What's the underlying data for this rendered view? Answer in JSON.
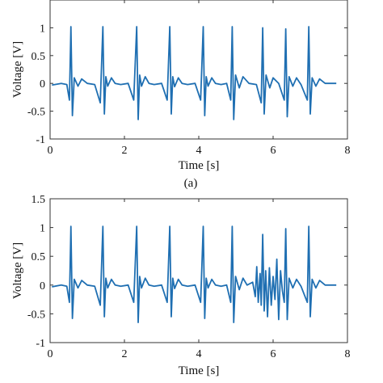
{
  "chart_data": [
    {
      "type": "line",
      "caption": "(a)",
      "xlabel": "Time [s]",
      "ylabel": "Voltage [V]",
      "xlim": [
        0,
        8
      ],
      "ylim": [
        -1,
        1.5
      ],
      "xticks": [
        0,
        2,
        4,
        6,
        8
      ],
      "xtick_labels": [
        "0",
        "2",
        "4",
        "6",
        "8"
      ],
      "yticks": [
        -1,
        -0.5,
        0,
        0.5,
        1
      ],
      "ytick_labels": [
        "-1",
        "-0.5",
        "0",
        "0.5",
        "1"
      ],
      "line_color": "#1f6fb2",
      "grid": false,
      "series": [
        {
          "values_description": "ECG-like signal with sharp R peaks",
          "x": [
            0.05,
            0.3,
            0.45,
            0.52,
            0.56,
            0.6,
            0.65,
            0.75,
            0.85,
            1.0,
            1.2,
            1.35,
            1.42,
            1.46,
            1.5,
            1.55,
            1.65,
            1.75,
            1.9,
            2.1,
            2.25,
            2.33,
            2.37,
            2.41,
            2.46,
            2.56,
            2.66,
            2.8,
            3.0,
            3.15,
            3.22,
            3.26,
            3.3,
            3.35,
            3.45,
            3.55,
            3.7,
            3.9,
            4.05,
            4.12,
            4.16,
            4.2,
            4.25,
            4.35,
            4.45,
            4.6,
            4.75,
            4.86,
            4.9,
            4.94,
            4.99,
            5.09,
            5.19,
            5.35,
            5.55,
            5.68,
            5.72,
            5.76,
            5.81,
            5.91,
            6.0,
            6.15,
            6.3,
            6.34,
            6.38,
            6.43,
            6.53,
            6.63,
            6.75,
            6.92,
            6.96,
            7.0,
            7.05,
            7.15,
            7.25,
            7.4,
            7.7
          ],
          "y": [
            -0.03,
            0.0,
            -0.02,
            -0.3,
            1.02,
            -0.58,
            0.1,
            -0.05,
            0.08,
            0.0,
            -0.02,
            -0.35,
            1.02,
            -0.55,
            0.12,
            -0.05,
            0.1,
            0.0,
            -0.02,
            0.0,
            -0.3,
            1.02,
            -0.65,
            0.15,
            -0.05,
            0.12,
            0.0,
            -0.02,
            0.0,
            -0.3,
            1.02,
            -0.55,
            0.12,
            -0.06,
            0.1,
            0.0,
            -0.02,
            0.0,
            -0.3,
            1.02,
            -0.58,
            0.12,
            -0.05,
            0.1,
            0.0,
            -0.02,
            0.0,
            -0.3,
            1.02,
            -0.65,
            0.15,
            -0.08,
            0.12,
            0.0,
            -0.02,
            -0.35,
            1.0,
            -0.55,
            0.15,
            -0.08,
            0.1,
            0.0,
            -0.3,
            0.98,
            -0.6,
            0.12,
            -0.05,
            0.1,
            -0.02,
            -0.3,
            1.02,
            -0.55,
            0.1,
            -0.05,
            0.08,
            0.0,
            0.0
          ]
        }
      ]
    },
    {
      "type": "line",
      "caption": "",
      "xlabel": "Time [s]",
      "ylabel": "Voltage [V]",
      "xlim": [
        0,
        8
      ],
      "ylim": [
        -1,
        1.5
      ],
      "xticks": [
        0,
        2,
        4,
        6,
        8
      ],
      "xtick_labels": [
        "0",
        "2",
        "4",
        "6",
        "8"
      ],
      "yticks": [
        -1,
        -0.5,
        0,
        0.5,
        1,
        1.5
      ],
      "ytick_labels": [
        "-1",
        "-0.5",
        "0",
        "0.5",
        "1",
        "1.5"
      ],
      "line_color": "#1f6fb2",
      "grid": false,
      "series": [
        {
          "values_description": "ECG-like signal with sharp R peaks and noisy segment near 5.5-6.5 s",
          "x": [
            0.05,
            0.3,
            0.45,
            0.52,
            0.56,
            0.6,
            0.65,
            0.75,
            0.85,
            1.0,
            1.2,
            1.35,
            1.42,
            1.46,
            1.5,
            1.55,
            1.65,
            1.75,
            1.9,
            2.1,
            2.25,
            2.33,
            2.37,
            2.41,
            2.46,
            2.56,
            2.66,
            2.8,
            3.0,
            3.15,
            3.22,
            3.26,
            3.3,
            3.35,
            3.45,
            3.55,
            3.7,
            3.9,
            4.05,
            4.12,
            4.16,
            4.2,
            4.25,
            4.35,
            4.45,
            4.6,
            4.75,
            4.86,
            4.9,
            4.94,
            4.99,
            5.09,
            5.19,
            5.3,
            5.45,
            5.52,
            5.56,
            5.6,
            5.65,
            5.68,
            5.72,
            5.76,
            5.8,
            5.85,
            5.9,
            5.95,
            6.0,
            6.05,
            6.1,
            6.15,
            6.2,
            6.25,
            6.3,
            6.34,
            6.38,
            6.43,
            6.53,
            6.63,
            6.75,
            6.92,
            6.96,
            7.0,
            7.05,
            7.15,
            7.25,
            7.4,
            7.7
          ],
          "y": [
            -0.03,
            0.0,
            -0.02,
            -0.3,
            1.02,
            -0.58,
            0.1,
            -0.05,
            0.08,
            0.0,
            -0.02,
            -0.35,
            1.02,
            -0.55,
            0.12,
            -0.05,
            0.1,
            0.0,
            -0.02,
            0.0,
            -0.3,
            1.02,
            -0.65,
            0.15,
            -0.05,
            0.12,
            0.0,
            -0.02,
            0.0,
            -0.3,
            1.02,
            -0.55,
            0.12,
            -0.06,
            0.1,
            0.0,
            -0.02,
            0.0,
            -0.3,
            1.02,
            -0.58,
            0.12,
            -0.05,
            0.1,
            0.0,
            -0.02,
            0.0,
            -0.3,
            1.02,
            -0.65,
            0.15,
            -0.08,
            0.12,
            0.0,
            0.05,
            -0.2,
            0.32,
            -0.3,
            0.2,
            -0.35,
            0.88,
            -0.45,
            0.25,
            -0.55,
            0.3,
            -0.35,
            0.15,
            -0.25,
            0.45,
            -0.6,
            0.25,
            -0.1,
            -0.3,
            0.98,
            -0.6,
            0.12,
            -0.05,
            0.1,
            -0.02,
            -0.3,
            1.02,
            -0.55,
            0.1,
            -0.05,
            0.08,
            0.0,
            0.0
          ]
        }
      ]
    }
  ]
}
